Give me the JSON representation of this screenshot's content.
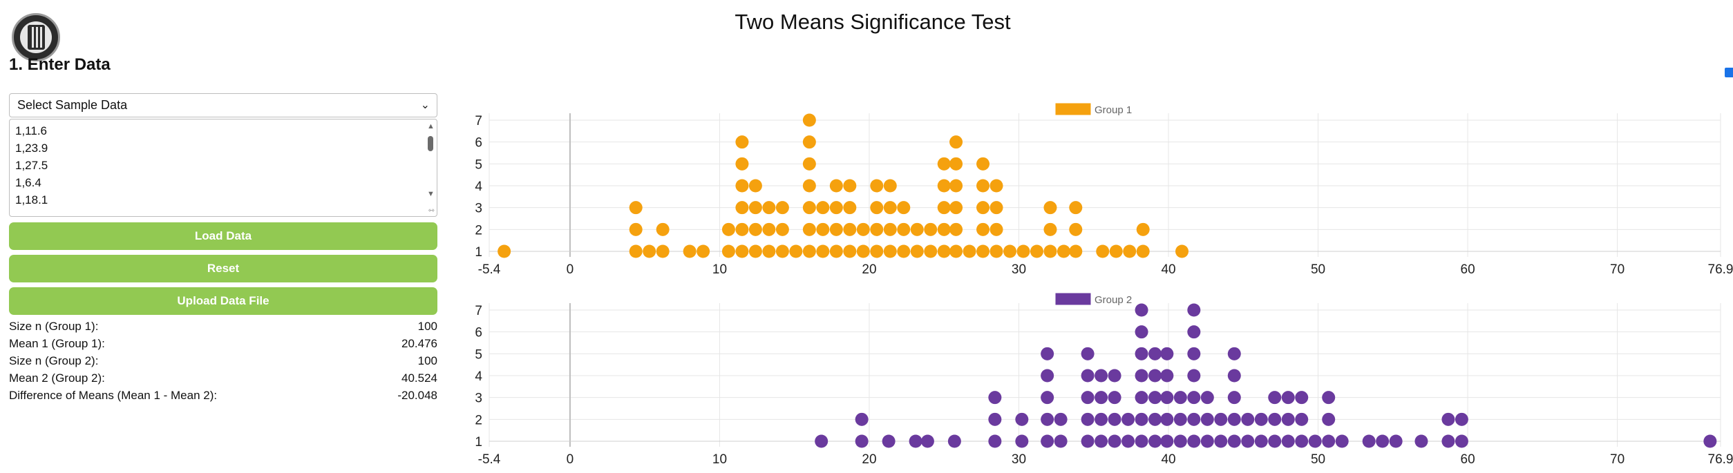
{
  "header": {
    "title": "Two Means Significance Test"
  },
  "section": {
    "title": "1. Enter Data"
  },
  "sample_select": {
    "value": "Select Sample Data"
  },
  "data_input": {
    "lines": [
      "1,11.6",
      "1,23.9",
      "1,27.5",
      "1,6.4",
      "1,18.1"
    ]
  },
  "buttons": {
    "load": "Load Data",
    "reset": "Reset",
    "upload": "Upload Data File"
  },
  "stats": [
    {
      "label": "Size n (Group 1):",
      "value": "100"
    },
    {
      "label": "Mean 1 (Group 1):",
      "value": "20.476"
    },
    {
      "label": "Size n (Group 2):",
      "value": "100"
    },
    {
      "label": "Mean 2 (Group 2):",
      "value": "40.524"
    },
    {
      "label": "Difference of Means (Mean 1 - Mean 2):",
      "value": "-20.048"
    }
  ],
  "chart_data": [
    {
      "type": "scatter",
      "subtype": "dot-plot",
      "legend": "Group 1",
      "color": "#f5a10e",
      "xlim": [
        -5.4,
        76.9
      ],
      "xticks": [
        "-5.4",
        "0",
        "10",
        "20",
        "30",
        "40",
        "50",
        "60",
        "70",
        "76.9"
      ],
      "ylim": [
        1,
        7
      ],
      "yticks": [
        "1",
        "2",
        "3",
        "4",
        "5",
        "6",
        "7"
      ],
      "grid": true,
      "legend_position": "top-center",
      "columns": [
        {
          "x": -4.4,
          "count": 1
        },
        {
          "x": 4.4,
          "count": 3
        },
        {
          "x": 5.3,
          "count": 1
        },
        {
          "x": 6.2,
          "count": 2
        },
        {
          "x": 8.0,
          "count": 1
        },
        {
          "x": 8.9,
          "count": 1
        },
        {
          "x": 10.6,
          "count": 2
        },
        {
          "x": 11.5,
          "count": 6
        },
        {
          "x": 12.4,
          "count": 4
        },
        {
          "x": 13.3,
          "count": 3
        },
        {
          "x": 14.2,
          "count": 3
        },
        {
          "x": 15.1,
          "count": 1
        },
        {
          "x": 16.0,
          "count": 7
        },
        {
          "x": 16.9,
          "count": 3
        },
        {
          "x": 17.8,
          "count": 4
        },
        {
          "x": 18.7,
          "count": 4
        },
        {
          "x": 19.6,
          "count": 2
        },
        {
          "x": 20.5,
          "count": 4
        },
        {
          "x": 21.4,
          "count": 4
        },
        {
          "x": 22.3,
          "count": 3
        },
        {
          "x": 23.2,
          "count": 2
        },
        {
          "x": 24.1,
          "count": 2
        },
        {
          "x": 25.0,
          "count": 5
        },
        {
          "x": 25.8,
          "count": 6
        },
        {
          "x": 26.7,
          "count": 1
        },
        {
          "x": 27.6,
          "count": 5
        },
        {
          "x": 28.5,
          "count": 4
        },
        {
          "x": 29.4,
          "count": 1
        },
        {
          "x": 30.3,
          "count": 1
        },
        {
          "x": 31.2,
          "count": 1
        },
        {
          "x": 32.1,
          "count": 3
        },
        {
          "x": 33.0,
          "count": 1
        },
        {
          "x": 33.8,
          "count": 3
        },
        {
          "x": 35.6,
          "count": 1
        },
        {
          "x": 36.5,
          "count": 1
        },
        {
          "x": 37.4,
          "count": 1
        },
        {
          "x": 38.3,
          "count": 2
        },
        {
          "x": 40.9,
          "count": 1
        }
      ]
    },
    {
      "type": "scatter",
      "subtype": "dot-plot",
      "legend": "Group 2",
      "color": "#6a3a9e",
      "xlim": [
        -5.4,
        76.9
      ],
      "xticks": [
        "-5.4",
        "0",
        "10",
        "20",
        "30",
        "40",
        "50",
        "60",
        "70",
        "76.9"
      ],
      "ylim": [
        1,
        7
      ],
      "yticks": [
        "1",
        "2",
        "3",
        "4",
        "5",
        "6",
        "7"
      ],
      "grid": true,
      "legend_position": "top-center",
      "columns": [
        {
          "x": 16.8,
          "count": 1
        },
        {
          "x": 19.5,
          "count": 2
        },
        {
          "x": 21.3,
          "count": 1
        },
        {
          "x": 23.1,
          "count": 1
        },
        {
          "x": 23.9,
          "count": 1
        },
        {
          "x": 25.7,
          "count": 1
        },
        {
          "x": 28.4,
          "count": 3
        },
        {
          "x": 30.2,
          "count": 2
        },
        {
          "x": 31.9,
          "count": 5
        },
        {
          "x": 32.8,
          "count": 2
        },
        {
          "x": 34.6,
          "count": 5
        },
        {
          "x": 35.5,
          "count": 4
        },
        {
          "x": 36.4,
          "count": 4
        },
        {
          "x": 37.3,
          "count": 2
        },
        {
          "x": 38.2,
          "count": 7
        },
        {
          "x": 39.1,
          "count": 5
        },
        {
          "x": 39.9,
          "count": 5
        },
        {
          "x": 40.8,
          "count": 3
        },
        {
          "x": 41.7,
          "count": 7
        },
        {
          "x": 42.6,
          "count": 3
        },
        {
          "x": 43.5,
          "count": 2
        },
        {
          "x": 44.4,
          "count": 5
        },
        {
          "x": 45.3,
          "count": 2
        },
        {
          "x": 46.2,
          "count": 2
        },
        {
          "x": 47.1,
          "count": 3
        },
        {
          "x": 48.0,
          "count": 3
        },
        {
          "x": 48.9,
          "count": 3
        },
        {
          "x": 49.8,
          "count": 1
        },
        {
          "x": 50.7,
          "count": 3
        },
        {
          "x": 51.6,
          "count": 1
        },
        {
          "x": 53.4,
          "count": 1
        },
        {
          "x": 54.3,
          "count": 1
        },
        {
          "x": 55.2,
          "count": 1
        },
        {
          "x": 56.9,
          "count": 1
        },
        {
          "x": 58.7,
          "count": 2
        },
        {
          "x": 59.6,
          "count": 2
        },
        {
          "x": 76.2,
          "count": 1
        }
      ]
    }
  ]
}
